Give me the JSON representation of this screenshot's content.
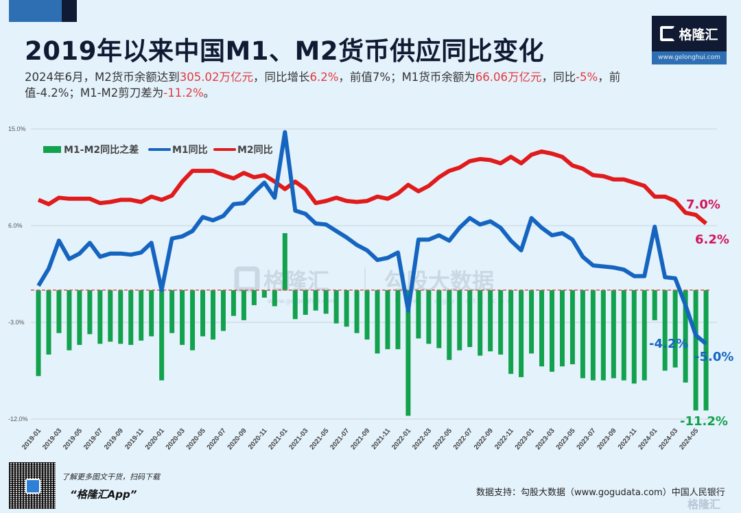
{
  "header": {
    "title": "2019年以来中国M1、M2货币供应同比变化",
    "subtitle_parts": [
      {
        "text": "2024年6月，M2货币余额达到",
        "hl": false
      },
      {
        "text": "305.02万亿元",
        "hl": true
      },
      {
        "text": "，同比增长",
        "hl": false
      },
      {
        "text": "6.2%",
        "hl": true
      },
      {
        "text": "，前值7%；M1货币余额为",
        "hl": false
      },
      {
        "text": "66.06万亿元",
        "hl": true
      },
      {
        "text": "，同比",
        "hl": false
      },
      {
        "text": "-5%",
        "hl": true
      },
      {
        "text": "，前值-4.2%；M1-M2剪刀差为",
        "hl": false
      },
      {
        "text": "-11.2%",
        "hl": true
      },
      {
        "text": "。",
        "hl": false
      }
    ]
  },
  "logo": {
    "name": "格隆汇",
    "url": "www.gelonghui.com"
  },
  "watermark": {
    "left": "格隆汇",
    "right": "勾股大数据",
    "left_url": "www.gelonghui.com",
    "right_url": "www.gogudata.com"
  },
  "footer": {
    "promo_line1": "了解更多图文干货，扫码下载",
    "promo_line2": "“格隆汇App”",
    "source": "数据支持：勾股大数据（www.gogudata.com）中国人民银行",
    "corner_watermark": "格隆汇"
  },
  "colors": {
    "m1": "#1565c0",
    "m2": "#e01b1b",
    "diff": "#12a14c",
    "m2_label": "#d0185a",
    "zero_line": "#d9534f"
  },
  "chart_data": {
    "type": "bar+line",
    "title": "2019年以来中国M1、M2货币供应同比变化",
    "ylim": [
      -12,
      15
    ],
    "yticks": [
      15,
      6,
      -3,
      -12
    ],
    "ytick_labels": [
      "15.0%",
      "6.0%",
      "-3.0%",
      "-12.0%"
    ],
    "grid": true,
    "legend_position": "top-left",
    "x": [
      "2019-01",
      "2019-02",
      "2019-03",
      "2019-04",
      "2019-05",
      "2019-06",
      "2019-07",
      "2019-08",
      "2019-09",
      "2019-10",
      "2019-11",
      "2019-12",
      "2020-01",
      "2020-02",
      "2020-03",
      "2020-04",
      "2020-05",
      "2020-06",
      "2020-07",
      "2020-08",
      "2020-09",
      "2020-10",
      "2020-11",
      "2020-12",
      "2021-01",
      "2021-02",
      "2021-03",
      "2021-04",
      "2021-05",
      "2021-06",
      "2021-07",
      "2021-08",
      "2021-09",
      "2021-10",
      "2021-11",
      "2021-12",
      "2022-01",
      "2022-02",
      "2022-03",
      "2022-04",
      "2022-05",
      "2022-06",
      "2022-07",
      "2022-08",
      "2022-09",
      "2022-10",
      "2022-11",
      "2022-12",
      "2023-01",
      "2023-02",
      "2023-03",
      "2023-04",
      "2023-05",
      "2023-06",
      "2023-07",
      "2023-08",
      "2023-09",
      "2023-10",
      "2023-11",
      "2023-12",
      "2024-01",
      "2024-02",
      "2024-03",
      "2024-04",
      "2024-05",
      "2024-06"
    ],
    "x_tick_labels": [
      "2019-01",
      "2019-03",
      "2019-05",
      "2019-07",
      "2019-09",
      "2019-11",
      "2020-01",
      "2020-03",
      "2020-05",
      "2020-07",
      "2020-09",
      "2020-11",
      "2021-01",
      "2021-03",
      "2021-05",
      "2021-07",
      "2021-09",
      "2021-11",
      "2022-01",
      "2022-03",
      "2022-05",
      "2022-07",
      "2022-09",
      "2022-11",
      "2023-01",
      "2023-03",
      "2023-05",
      "2023-07",
      "2023-09",
      "2023-11",
      "2024-01",
      "2024-03",
      "2024-05"
    ],
    "series": [
      {
        "name": "M1-M2同比之差",
        "type": "bar",
        "values": [
          -8.0,
          -6.0,
          -4.0,
          -5.6,
          -5.1,
          -4.1,
          -5.0,
          -4.8,
          -5.0,
          -5.1,
          -4.7,
          -4.3,
          -8.4,
          -4.0,
          -5.1,
          -5.6,
          -4.3,
          -4.6,
          -3.8,
          -2.4,
          -2.8,
          -1.4,
          -0.7,
          -1.5,
          5.3,
          -2.7,
          -2.3,
          -1.9,
          -2.2,
          -3.1,
          -3.4,
          -4.0,
          -4.6,
          -5.9,
          -5.5,
          -5.5,
          -11.7,
          -4.5,
          -5.0,
          -5.4,
          -6.5,
          -5.6,
          -5.3,
          -6.1,
          -5.7,
          -6.0,
          -7.8,
          -8.1,
          -5.9,
          -7.1,
          -7.6,
          -7.1,
          -6.9,
          -8.2,
          -8.4,
          -8.4,
          -8.2,
          -8.4,
          -8.7,
          -8.4,
          -2.8,
          -7.5,
          -7.2,
          -8.6,
          -11.2,
          -11.2
        ]
      },
      {
        "name": "M1同比",
        "type": "line",
        "values": [
          0.4,
          2.0,
          4.6,
          2.9,
          3.4,
          4.4,
          3.1,
          3.4,
          3.4,
          3.3,
          3.5,
          4.4,
          0.0,
          4.8,
          5.0,
          5.5,
          6.8,
          6.5,
          6.9,
          8.0,
          8.1,
          9.1,
          10.0,
          8.6,
          14.7,
          7.4,
          7.1,
          6.2,
          6.1,
          5.5,
          4.9,
          4.2,
          3.7,
          2.8,
          3.0,
          3.5,
          -1.9,
          4.7,
          4.7,
          5.1,
          4.6,
          5.8,
          6.7,
          6.1,
          6.4,
          5.8,
          4.6,
          3.7,
          6.7,
          5.8,
          5.1,
          5.3,
          4.7,
          3.1,
          2.3,
          2.2,
          2.1,
          1.9,
          1.3,
          1.3,
          5.9,
          1.2,
          1.1,
          -1.4,
          -4.2,
          -5.0
        ]
      },
      {
        "name": "M2同比",
        "type": "line",
        "values": [
          8.4,
          8.0,
          8.6,
          8.5,
          8.5,
          8.5,
          8.1,
          8.2,
          8.4,
          8.4,
          8.2,
          8.7,
          8.4,
          8.8,
          10.1,
          11.1,
          11.1,
          11.1,
          10.7,
          10.4,
          10.9,
          10.5,
          10.7,
          10.1,
          9.4,
          10.1,
          9.4,
          8.1,
          8.3,
          8.6,
          8.3,
          8.2,
          8.3,
          8.7,
          8.5,
          9.0,
          9.8,
          9.2,
          9.7,
          10.5,
          11.1,
          11.4,
          12.0,
          12.2,
          12.1,
          11.8,
          12.4,
          11.8,
          12.6,
          12.9,
          12.7,
          12.4,
          11.6,
          11.3,
          10.7,
          10.6,
          10.3,
          10.3,
          10.0,
          9.7,
          8.7,
          8.7,
          8.3,
          7.2,
          7.0,
          6.2
        ]
      }
    ],
    "annotations": [
      {
        "series": "M2同比",
        "text": "7.0%"
      },
      {
        "series": "M2同比",
        "text": "6.2%"
      },
      {
        "series": "M1同比",
        "text": "-4.2%"
      },
      {
        "series": "M1同比",
        "text": "-5.0%"
      },
      {
        "series": "M1-M2同比之差",
        "text": "-11.2%"
      }
    ]
  }
}
